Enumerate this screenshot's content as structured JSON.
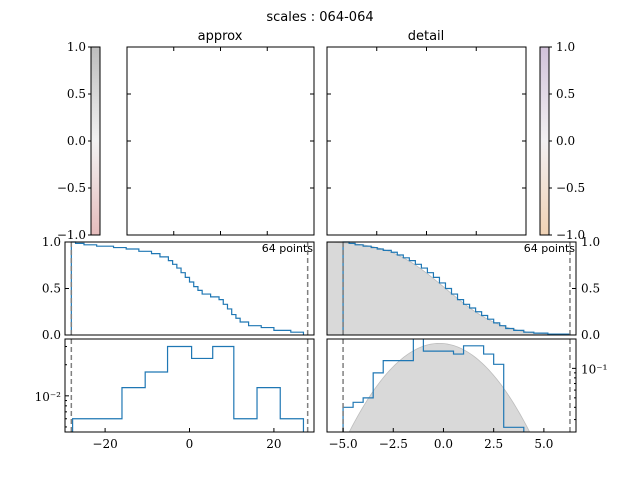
{
  "chart_data": [
    {
      "type": "heatmap",
      "panel": "colorbar-left",
      "yticks": [
        "1.0",
        "0.5",
        "0.0",
        "−0.5",
        "−1.0"
      ],
      "ylim": [
        -1.0,
        1.0
      ],
      "colors": [
        "#c0c0c0",
        "#f0f0f0",
        "#e4bcbc"
      ]
    },
    {
      "type": "heatmap",
      "panel": "approx-image",
      "title": "approx",
      "values": []
    },
    {
      "type": "heatmap",
      "panel": "detail-image",
      "title": "detail",
      "values": []
    },
    {
      "type": "heatmap",
      "panel": "colorbar-right",
      "yticks": [
        "1.0",
        "0.5",
        "0.0",
        "−0.5",
        "−1.0"
      ],
      "ylim": [
        -1.0,
        1.0
      ],
      "colors": [
        "#d4c4dc",
        "#f2f0f2",
        "#f0d4b8"
      ]
    },
    {
      "type": "line",
      "panel": "approx-cdf",
      "annotation": "64 points",
      "xlim": [
        -29.5,
        29.5
      ],
      "ylim": [
        0.0,
        1.0
      ],
      "yticks": [
        "1.0",
        "0.5",
        "0.0"
      ],
      "vlines": [
        -28,
        28
      ],
      "series": [
        {
          "x": [
            -28,
            -27,
            -25,
            -22,
            -18,
            -15,
            -12,
            -9,
            -7,
            -5,
            -4,
            -3,
            -2,
            -1,
            0,
            1,
            2,
            3,
            5,
            7,
            8,
            9,
            10,
            11,
            12,
            14,
            17,
            20,
            24,
            27
          ],
          "y": [
            1.0,
            0.985,
            0.97,
            0.955,
            0.94,
            0.925,
            0.9,
            0.875,
            0.84,
            0.8,
            0.76,
            0.72,
            0.67,
            0.62,
            0.57,
            0.52,
            0.48,
            0.44,
            0.41,
            0.38,
            0.33,
            0.28,
            0.22,
            0.18,
            0.14,
            0.1,
            0.08,
            0.05,
            0.03,
            0.0
          ]
        }
      ]
    },
    {
      "type": "line",
      "panel": "detail-cdf",
      "annotation": "64 points",
      "xlim": [
        -5.8,
        6.6
      ],
      "ylim": [
        0.0,
        1.0
      ],
      "yticks": [
        "1.0",
        "0.5",
        "0.0"
      ],
      "vlines": [
        -5.0,
        6.3
      ],
      "series": [
        {
          "x": [
            -5.0,
            -4.7,
            -4.4,
            -4.0,
            -3.6,
            -3.3,
            -3.0,
            -2.6,
            -2.3,
            -2.0,
            -1.7,
            -1.4,
            -1.1,
            -0.8,
            -0.5,
            -0.2,
            0.1,
            0.4,
            0.7,
            1.0,
            1.3,
            1.6,
            1.9,
            2.2,
            2.5,
            2.8,
            3.1,
            3.5,
            4.0,
            4.5,
            5.2,
            6.3
          ],
          "y": [
            1.0,
            0.985,
            0.97,
            0.955,
            0.94,
            0.925,
            0.91,
            0.89,
            0.86,
            0.83,
            0.8,
            0.76,
            0.72,
            0.67,
            0.62,
            0.56,
            0.5,
            0.44,
            0.38,
            0.33,
            0.29,
            0.25,
            0.21,
            0.17,
            0.13,
            0.1,
            0.07,
            0.05,
            0.03,
            0.02,
            0.01,
            0.0
          ]
        }
      ]
    },
    {
      "type": "line",
      "panel": "approx-histogram",
      "xlim": [
        -29.5,
        29.5
      ],
      "xticks": [
        -20,
        0,
        20
      ],
      "yticks": [
        "10⁻²"
      ],
      "vlines": [
        -28,
        28
      ],
      "series": [
        {
          "edges": [
            -27.7,
            -16,
            -10.5,
            -5.2,
            0.5,
            5.5,
            10.5,
            16,
            21.5,
            27
          ],
          "heights": [
            0.006,
            0.012,
            0.017,
            0.03,
            0.023,
            0.03,
            0.006,
            0.012,
            0.006
          ]
        }
      ]
    },
    {
      "type": "line",
      "panel": "detail-histogram",
      "xlim": [
        -5.8,
        6.6
      ],
      "xticks": [
        -5.0,
        -2.5,
        0.0,
        2.5,
        5.0
      ],
      "yticks": [
        "10⁻¹"
      ],
      "vlines": [
        -5.0,
        6.3
      ],
      "series": [
        {
          "edges": [
            -5.0,
            -4.5,
            -4.0,
            -3.5,
            -3.0,
            -1.5,
            -1.0,
            -0.5,
            0.5,
            1.0,
            2.0,
            2.5,
            3.0,
            4.0
          ],
          "heights": [
            0.04,
            0.045,
            0.05,
            0.09,
            0.12,
            0.21,
            0.15,
            0.15,
            0.14,
            0.17,
            0.14,
            0.11,
            0.025
          ]
        }
      ]
    }
  ],
  "title": "scales : 064-064",
  "panels": {
    "approx_title": "approx",
    "detail_title": "detail",
    "cdf_left_annotation": "64 points",
    "cdf_right_annotation": "64 points"
  },
  "axes": {
    "cbar_ticks": [
      "1.0",
      "0.5",
      "0.0",
      "−0.5",
      "−1.0"
    ],
    "cdf_ticks": [
      "1.0",
      "0.5",
      "0.0"
    ],
    "approx_x_ticks": [
      "−20",
      "0",
      "20"
    ],
    "detail_x_ticks": [
      "−5.0",
      "−2.5",
      "0.0",
      "2.5",
      "5.0"
    ],
    "hist_left_ytick": "10⁻²",
    "hist_right_ytick": "10⁻¹"
  },
  "colors": {
    "series": "#1f77b4",
    "fill": "#d9d9d9",
    "vline": "#808080"
  }
}
